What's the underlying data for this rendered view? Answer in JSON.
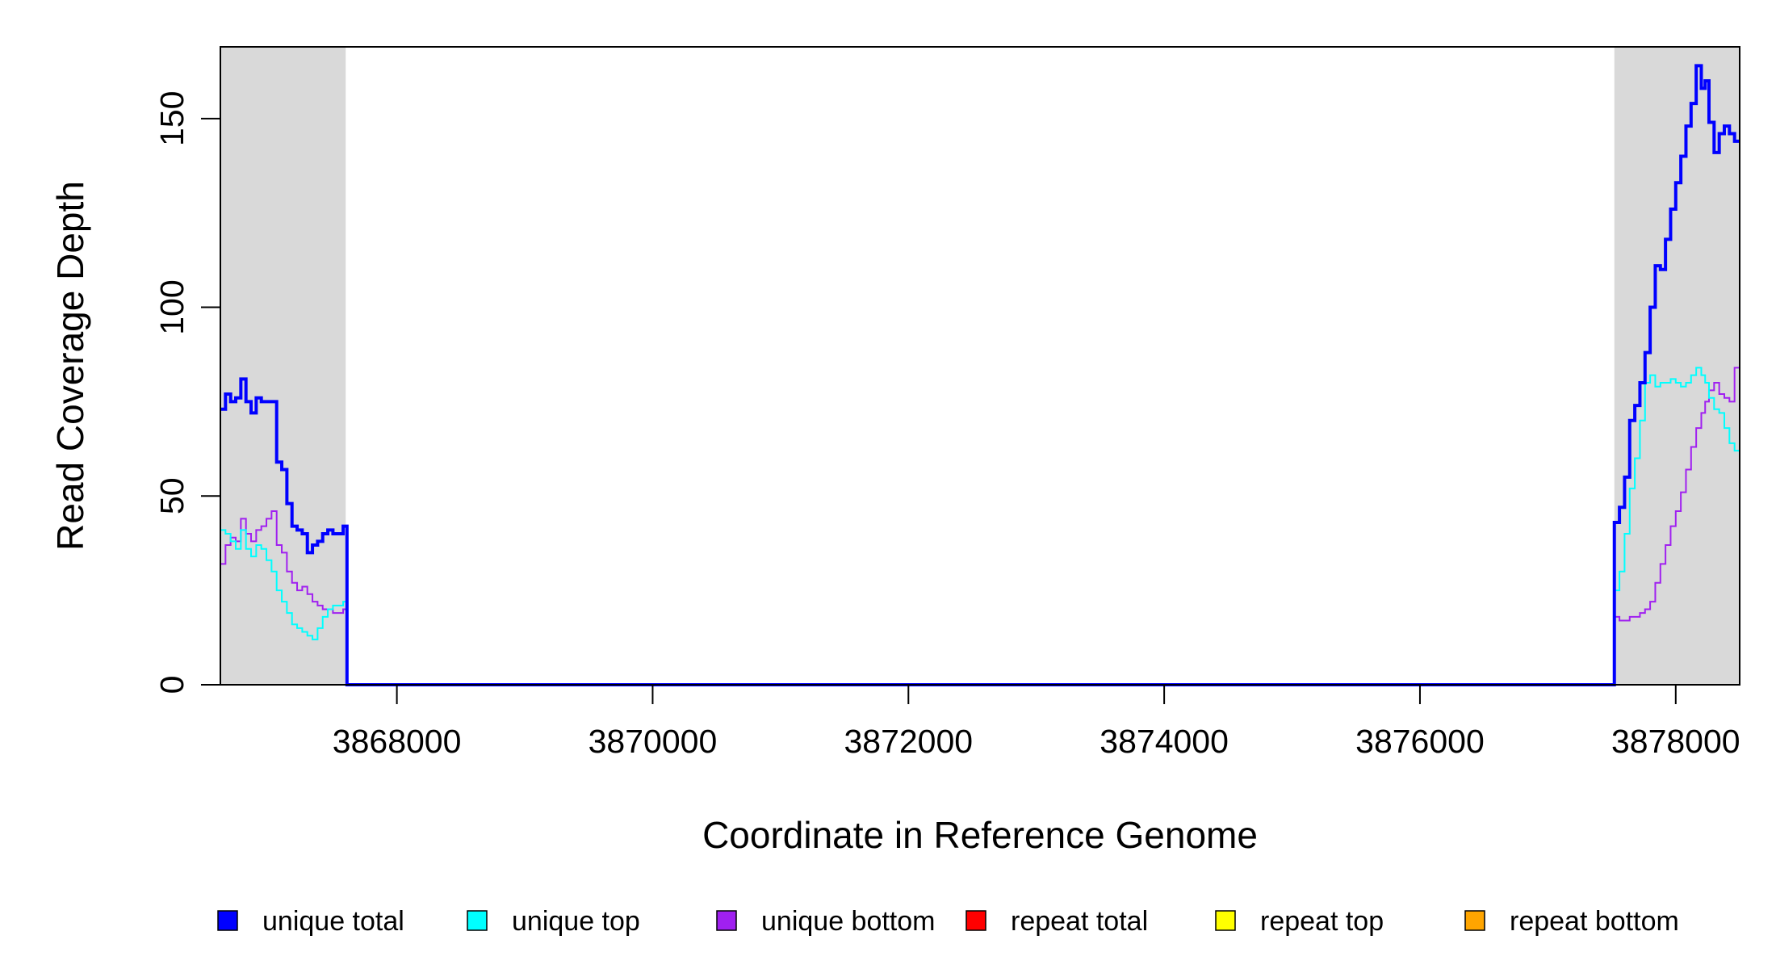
{
  "chart_data": {
    "type": "line",
    "xlabel": "Coordinate in Reference Genome",
    "ylabel": "Read Coverage Depth",
    "xlim": [
      3866620,
      3878500
    ],
    "ylim": [
      0,
      169
    ],
    "x_ticks": [
      3868000,
      3870000,
      3872000,
      3874000,
      3876000,
      3878000
    ],
    "x_tick_labels": [
      "3868000",
      "3870000",
      "3872000",
      "3874000",
      "3876000",
      "3878000"
    ],
    "y_ticks": [
      0,
      50,
      100,
      150
    ],
    "y_tick_labels": [
      "0",
      "50",
      "100",
      "150"
    ],
    "shaded_regions": [
      [
        3866620,
        3867600
      ],
      [
        3877520,
        3878500
      ]
    ],
    "shade_color": "#d9d9d9",
    "legend_position": "bottom",
    "legend": [
      {
        "name": "unique total",
        "color": "#0000ff"
      },
      {
        "name": "unique top",
        "color": "#00ffff"
      },
      {
        "name": "unique bottom",
        "color": "#a020f0"
      },
      {
        "name": "repeat total",
        "color": "#ff0000"
      },
      {
        "name": "repeat top",
        "color": "#ffff00"
      },
      {
        "name": "repeat bottom",
        "color": "#ffa500"
      }
    ],
    "series": [
      {
        "name": "unique total",
        "color": "#0000ff",
        "width": 4,
        "x": [
          3866620,
          3866660,
          3866700,
          3866740,
          3866780,
          3866820,
          3866860,
          3866900,
          3866940,
          3866980,
          3867020,
          3867060,
          3867100,
          3867140,
          3867180,
          3867220,
          3867260,
          3867300,
          3867340,
          3867380,
          3867420,
          3867460,
          3867500,
          3867540,
          3867580,
          3867600,
          3867610,
          3877500,
          3877520,
          3877560,
          3877600,
          3877640,
          3877680,
          3877720,
          3877760,
          3877800,
          3877840,
          3877880,
          3877920,
          3877960,
          3878000,
          3878040,
          3878080,
          3878120,
          3878160,
          3878200,
          3878230,
          3878260,
          3878300,
          3878340,
          3878380,
          3878420,
          3878460,
          3878500
        ],
        "y": [
          73,
          77,
          75,
          76,
          81,
          75,
          72,
          76,
          75,
          75,
          75,
          59,
          57,
          48,
          42,
          41,
          40,
          35,
          37,
          38,
          40,
          41,
          40,
          40,
          42,
          42,
          0,
          0,
          43,
          47,
          55,
          70,
          74,
          80,
          88,
          100,
          111,
          110,
          118,
          126,
          133,
          140,
          148,
          154,
          164,
          158,
          160,
          149,
          141,
          146,
          148,
          146,
          144,
          144
        ]
      },
      {
        "name": "unique top",
        "color": "#00ffff",
        "width": 2,
        "x": [
          3866620,
          3866660,
          3866700,
          3866740,
          3866780,
          3866820,
          3866860,
          3866900,
          3866940,
          3866980,
          3867020,
          3867060,
          3867100,
          3867140,
          3867180,
          3867220,
          3867260,
          3867300,
          3867340,
          3867380,
          3867420,
          3867460,
          3867500,
          3867540,
          3867580,
          3867600,
          3867610,
          3877500,
          3877520,
          3877560,
          3877600,
          3877640,
          3877680,
          3877720,
          3877760,
          3877800,
          3877840,
          3877880,
          3877920,
          3877960,
          3878000,
          3878040,
          3878080,
          3878120,
          3878160,
          3878200,
          3878230,
          3878260,
          3878300,
          3878340,
          3878380,
          3878420,
          3878460,
          3878500
        ],
        "y": [
          41,
          40,
          38,
          36,
          41,
          36,
          34,
          37,
          36,
          33,
          30,
          25,
          22,
          19,
          16,
          15,
          14,
          13,
          12,
          15,
          18,
          20,
          21,
          21,
          22,
          22,
          0,
          0,
          25,
          30,
          40,
          52,
          60,
          70,
          80,
          82,
          79,
          80,
          80,
          81,
          80,
          79,
          80,
          82,
          84,
          82,
          80,
          76,
          73,
          72,
          68,
          64,
          62,
          62
        ]
      },
      {
        "name": "unique bottom",
        "color": "#a020f0",
        "width": 2,
        "x": [
          3866620,
          3866660,
          3866700,
          3866740,
          3866780,
          3866820,
          3866860,
          3866900,
          3866940,
          3866980,
          3867020,
          3867060,
          3867100,
          3867140,
          3867180,
          3867220,
          3867260,
          3867300,
          3867340,
          3867380,
          3867420,
          3867460,
          3867500,
          3867540,
          3867580,
          3867600,
          3867610,
          3877500,
          3877520,
          3877560,
          3877600,
          3877640,
          3877680,
          3877720,
          3877760,
          3877800,
          3877840,
          3877880,
          3877920,
          3877960,
          3878000,
          3878040,
          3878080,
          3878120,
          3878160,
          3878200,
          3878230,
          3878260,
          3878300,
          3878340,
          3878380,
          3878420,
          3878460,
          3878500
        ],
        "y": [
          32,
          37,
          39,
          38,
          44,
          40,
          38,
          41,
          42,
          44,
          46,
          37,
          35,
          30,
          27,
          25,
          26,
          24,
          22,
          21,
          20,
          20,
          19,
          19,
          20,
          20,
          0,
          0,
          18,
          17,
          17,
          18,
          18,
          19,
          20,
          22,
          27,
          32,
          37,
          42,
          46,
          51,
          57,
          63,
          68,
          72,
          75,
          78,
          80,
          77,
          76,
          75,
          84,
          84
        ]
      },
      {
        "name": "repeat total",
        "color": "#ff0000",
        "width": 2,
        "x": [
          3866620,
          3878500
        ],
        "y": [
          0,
          0
        ]
      },
      {
        "name": "repeat top",
        "color": "#ffff00",
        "width": 2,
        "x": [
          3866620,
          3878500
        ],
        "y": [
          0,
          0
        ]
      },
      {
        "name": "repeat bottom",
        "color": "#ffa500",
        "width": 2,
        "x": [
          3866620,
          3878500
        ],
        "y": [
          0,
          0
        ]
      }
    ]
  }
}
